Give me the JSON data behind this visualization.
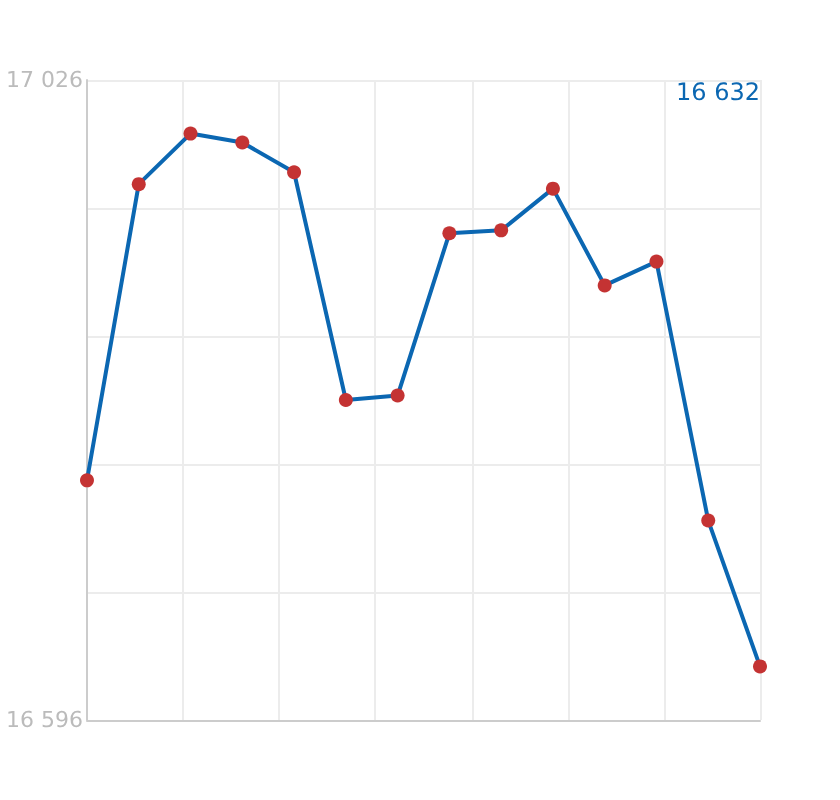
{
  "chart_data": {
    "type": "line",
    "categories": [
      null,
      null,
      null,
      null,
      null,
      null,
      null,
      null,
      null,
      null,
      null,
      null,
      null,
      null
    ],
    "series": [
      {
        "color": "#0b67b2",
        "colors": [
          "#c43333",
          "#c43333",
          "#c43333",
          "#c43333",
          "#c43333",
          "#c43333",
          "#c43333",
          "#c43333",
          "#c43333",
          "#c43333",
          "#c43333",
          "#c43333",
          "#c43333",
          "#c43333"
        ],
        "values": [
          16757,
          16956,
          16990,
          16984,
          16964,
          16811,
          16814,
          16923,
          16925,
          16953,
          16888,
          16904,
          16730,
          16632
        ]
      }
    ],
    "ylim": [
      16596,
      17026
    ],
    "yticks": [
      {
        "value": 16596,
        "label": "16 596"
      },
      {
        "value": 16682,
        "label": null
      },
      {
        "value": 16768,
        "label": null
      },
      {
        "value": 16854,
        "label": null
      },
      {
        "value": 16940,
        "label": null
      },
      {
        "value": 17026,
        "label": "17 026"
      }
    ],
    "annotations": [
      "16 632"
    ],
    "grid": true,
    "marker": "circle",
    "line_style": "solid"
  }
}
